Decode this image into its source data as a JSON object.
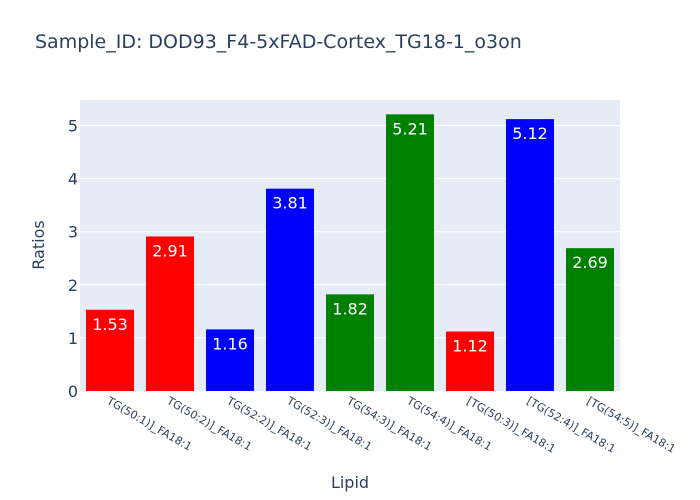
{
  "chart_data": {
    "type": "bar",
    "title": "Sample_ID: DOD93_F4-5xFAD-Cortex_TG18-1_o3on",
    "xlabel": "Lipid",
    "ylabel": "Ratios",
    "categories": [
      "TG(50:1)]_FA18:1",
      "TG(50:2)]_FA18:1",
      "TG(52:2)]_FA18:1",
      "TG(52:3)]_FA18:1",
      "TG(54:3)]_FA18:1",
      "TG(54:4)]_FA18:1",
      "[TG(50:3)]_FA18:1",
      "[TG(52:4)]_FA18:1",
      "[TG(54:5)]_FA18:1"
    ],
    "values": [
      1.53,
      2.91,
      1.16,
      3.81,
      1.82,
      5.21,
      1.12,
      5.12,
      2.69
    ],
    "value_labels": [
      "1.53",
      "2.91",
      "1.16",
      "3.81",
      "1.82",
      "5.21",
      "1.12",
      "5.12",
      "2.69"
    ],
    "colors": [
      "#ff0000",
      "#ff0000",
      "#0000ff",
      "#0000ff",
      "#008000",
      "#008000",
      "#ff0000",
      "#0000ff",
      "#008000"
    ],
    "ylim": [
      0,
      5.48
    ],
    "yticks": [
      0,
      1,
      2,
      3,
      4,
      5
    ],
    "grid": true,
    "plot_background": "#e5ecf6",
    "gridline_color": "#ffffff",
    "text_color": "#2a3f5f"
  }
}
